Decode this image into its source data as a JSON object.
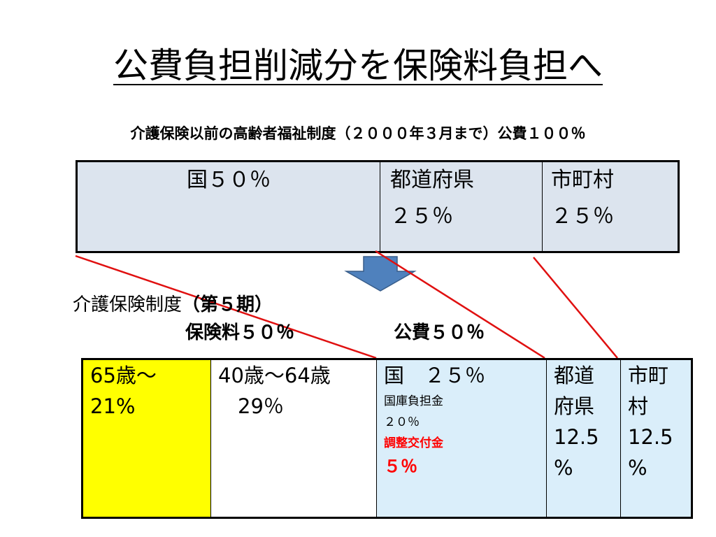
{
  "title": "公費負担削減分を保険料負担へ",
  "subtitle": "介護保険以前の高齢者福祉制度（２０００年３月まで）公費１００％",
  "old_system": {
    "national": "国５０％",
    "prefecture_name": "都道府県",
    "prefecture_pct": "２５％",
    "municipality_name": "市町村",
    "municipality_pct": "２５％"
  },
  "new_system": {
    "label_main": "介護保険制度",
    "label_period": "（第５期）",
    "premium_label": "保険料５０％",
    "public_label": "公費５０％",
    "age65_line1": "65歳～",
    "age65_line2": "21%",
    "age40_line1": "40歳～64歳",
    "age40_line2": "29％",
    "national_line1": "国　２５％",
    "national_sub1": "国庫負担金",
    "national_sub2": "２０％",
    "national_sub3": "調整交付金",
    "national_sub4": "５％",
    "pref_line1": "都道",
    "pref_line2": "府県",
    "pref_line3": "12.5",
    "pref_line4": "%",
    "muni_line1": "市町",
    "muni_line2": "村",
    "muni_line3": "12.5",
    "muni_line4": "%"
  },
  "colors": {
    "arrow_fill": "#4f81bd",
    "connector_line": "#e01010",
    "old_cell_bg": "#dce4ee",
    "highlight_yellow": "#ffff00",
    "public_bg": "#daeefa",
    "adjustment_text": "#ff0000"
  }
}
